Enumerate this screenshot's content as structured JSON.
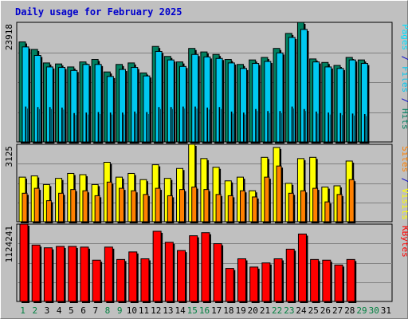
{
  "title": "Daily usage for February 2025",
  "colors": {
    "hits": "#008060",
    "files": "#00c8f0",
    "pages": "#00e0ff",
    "visits": "#ffff00",
    "sites": "#ff8000",
    "kbytes": "#ff0000",
    "weekend": "#008040",
    "weekday": "#000000",
    "plot_bg": "#c0c0c0"
  },
  "chart_data": [
    {
      "type": "bar",
      "title": "Daily usage for February 2025",
      "panel": "hits-files-pages",
      "ymax_label": "23918",
      "ylim": [
        0,
        23918
      ],
      "right_label": {
        "parts": [
          "Pages",
          " / ",
          "Files",
          " / ",
          "Hits"
        ]
      },
      "categories": [
        "1",
        "2",
        "3",
        "4",
        "5",
        "6",
        "7",
        "8",
        "9",
        "10",
        "11",
        "12",
        "13",
        "14",
        "15",
        "16",
        "17",
        "18",
        "19",
        "20",
        "21",
        "22",
        "23",
        "24",
        "25",
        "26",
        "27",
        "28",
        "29",
        "30",
        "31"
      ],
      "series": [
        {
          "name": "Hits",
          "values": [
            20000,
            18500,
            15800,
            15600,
            15000,
            16000,
            16500,
            14000,
            15500,
            15800,
            13800,
            19100,
            17100,
            16000,
            18700,
            18000,
            17500,
            16500,
            15500,
            16400,
            16900,
            18700,
            21700,
            23918,
            16600,
            15900,
            15300,
            16900,
            16400,
            0,
            0
          ]
        },
        {
          "name": "Files",
          "values": [
            19000,
            17300,
            15000,
            14900,
            14300,
            15500,
            15500,
            13100,
            14500,
            14900,
            13200,
            18100,
            16400,
            15100,
            17500,
            17000,
            16700,
            15800,
            14700,
            15700,
            16100,
            17800,
            20900,
            22500,
            16000,
            15000,
            14700,
            16400,
            15700,
            0,
            0
          ]
        },
        {
          "name": "Pages",
          "values": [
            7000,
            6900,
            6900,
            6800,
            5700,
            5800,
            5900,
            5800,
            5800,
            6000,
            5900,
            6900,
            6900,
            7000,
            7000,
            6800,
            6900,
            6000,
            5800,
            6500,
            6100,
            6100,
            7000,
            6500,
            6000,
            5800,
            5700,
            5600,
            5500,
            0,
            0
          ]
        }
      ]
    },
    {
      "type": "bar",
      "panel": "visits-sites",
      "ymax_label": "3125",
      "ylim": [
        0,
        3125
      ],
      "right_label": {
        "parts": [
          "Sites",
          " / ",
          "Visits"
        ]
      },
      "categories": [
        "1",
        "2",
        "3",
        "4",
        "5",
        "6",
        "7",
        "8",
        "9",
        "10",
        "11",
        "12",
        "13",
        "14",
        "15",
        "16",
        "17",
        "18",
        "19",
        "20",
        "21",
        "22",
        "23",
        "24",
        "25",
        "26",
        "27",
        "28",
        "29",
        "30",
        "31"
      ],
      "series": [
        {
          "name": "Visits",
          "values": [
            1800,
            1850,
            1500,
            1750,
            1950,
            1900,
            1500,
            2400,
            1800,
            1950,
            1700,
            2300,
            1750,
            2150,
            3125,
            2550,
            2200,
            1650,
            1800,
            1250,
            2600,
            3000,
            1550,
            2550,
            2600,
            1400,
            1450,
            2450,
            0,
            0,
            0
          ]
        },
        {
          "name": "Sites",
          "values": [
            1150,
            1350,
            850,
            1150,
            1300,
            1250,
            1050,
            1600,
            1350,
            1250,
            1100,
            1350,
            1050,
            1300,
            1400,
            1300,
            1100,
            1050,
            1250,
            1000,
            1800,
            2250,
            1150,
            1250,
            1350,
            800,
            1100,
            1700,
            0,
            0,
            0
          ]
        }
      ]
    },
    {
      "type": "bar",
      "panel": "kbytes",
      "ymax_label": "1124241",
      "ylim": [
        0,
        1124241
      ],
      "right_label": {
        "parts": [
          "KBytes"
        ]
      },
      "categories": [
        "1",
        "2",
        "3",
        "4",
        "5",
        "6",
        "7",
        "8",
        "9",
        "10",
        "11",
        "12",
        "13",
        "14",
        "15",
        "16",
        "17",
        "18",
        "19",
        "20",
        "21",
        "22",
        "23",
        "24",
        "25",
        "26",
        "27",
        "28",
        "29",
        "30",
        "31"
      ],
      "series": [
        {
          "name": "KBytes",
          "values": [
            1124241,
            820000,
            780000,
            800000,
            800000,
            790000,
            600000,
            790000,
            610000,
            720000,
            620000,
            1020000,
            860000,
            740000,
            955000,
            1000000,
            840000,
            480000,
            620000,
            500000,
            560000,
            620000,
            760000,
            980000,
            610000,
            600000,
            530000,
            610000,
            0,
            0,
            0
          ]
        }
      ]
    }
  ],
  "days": [
    "1",
    "2",
    "3",
    "4",
    "5",
    "6",
    "7",
    "8",
    "9",
    "10",
    "11",
    "12",
    "13",
    "14",
    "15",
    "16",
    "17",
    "18",
    "19",
    "20",
    "21",
    "22",
    "23",
    "24",
    "25",
    "26",
    "27",
    "28",
    "29",
    "30",
    "31"
  ],
  "weekend_days": [
    1,
    2,
    8,
    9,
    15,
    16,
    22,
    23,
    29,
    30
  ]
}
